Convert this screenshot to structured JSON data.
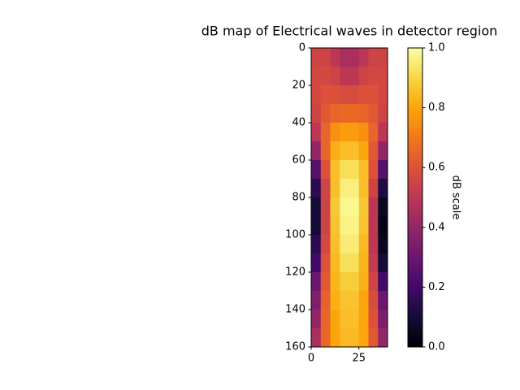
{
  "chart_data": {
    "type": "heatmap",
    "title": "dB map of Electrical waves in detector region",
    "colorbar_label": "dB scale",
    "colormap": "inferno",
    "xlim": [
      0,
      40
    ],
    "ylim": [
      160,
      0
    ],
    "xticks": [
      0,
      25
    ],
    "yticks": [
      0,
      20,
      40,
      60,
      80,
      100,
      120,
      140,
      160
    ],
    "clim": [
      0,
      1
    ],
    "cticks": [
      {
        "value": 0,
        "label": "0.0"
      },
      {
        "value": 0.2,
        "label": "0.2"
      },
      {
        "value": 0.4,
        "label": "0.4"
      },
      {
        "value": 0.6,
        "label": "0.6"
      },
      {
        "value": 0.8,
        "label": "0.8"
      },
      {
        "value": 1,
        "label": "1.0"
      }
    ],
    "z": [
      [
        0.55,
        0.55,
        0.5,
        0.45,
        0.45,
        0.5,
        0.55,
        0.55
      ],
      [
        0.56,
        0.57,
        0.55,
        0.5,
        0.5,
        0.55,
        0.57,
        0.56
      ],
      [
        0.57,
        0.6,
        0.6,
        0.58,
        0.58,
        0.6,
        0.6,
        0.57
      ],
      [
        0.55,
        0.62,
        0.65,
        0.66,
        0.66,
        0.65,
        0.62,
        0.55
      ],
      [
        0.5,
        0.65,
        0.75,
        0.78,
        0.78,
        0.75,
        0.65,
        0.5
      ],
      [
        0.4,
        0.65,
        0.82,
        0.85,
        0.85,
        0.8,
        0.62,
        0.4
      ],
      [
        0.25,
        0.6,
        0.85,
        0.92,
        0.92,
        0.85,
        0.6,
        0.25
      ],
      [
        0.15,
        0.55,
        0.85,
        0.96,
        0.96,
        0.85,
        0.55,
        0.12
      ],
      [
        0.1,
        0.55,
        0.87,
        0.98,
        0.98,
        0.87,
        0.5,
        0.05
      ],
      [
        0.1,
        0.55,
        0.86,
        0.97,
        0.97,
        0.86,
        0.5,
        0.03
      ],
      [
        0.15,
        0.57,
        0.85,
        0.95,
        0.95,
        0.84,
        0.5,
        0.05
      ],
      [
        0.2,
        0.6,
        0.84,
        0.92,
        0.92,
        0.83,
        0.52,
        0.1
      ],
      [
        0.3,
        0.62,
        0.83,
        0.88,
        0.88,
        0.82,
        0.55,
        0.2
      ],
      [
        0.35,
        0.64,
        0.82,
        0.86,
        0.86,
        0.8,
        0.58,
        0.3
      ],
      [
        0.4,
        0.65,
        0.8,
        0.85,
        0.85,
        0.8,
        0.6,
        0.35
      ],
      [
        0.45,
        0.66,
        0.8,
        0.84,
        0.84,
        0.8,
        0.62,
        0.4
      ]
    ]
  }
}
